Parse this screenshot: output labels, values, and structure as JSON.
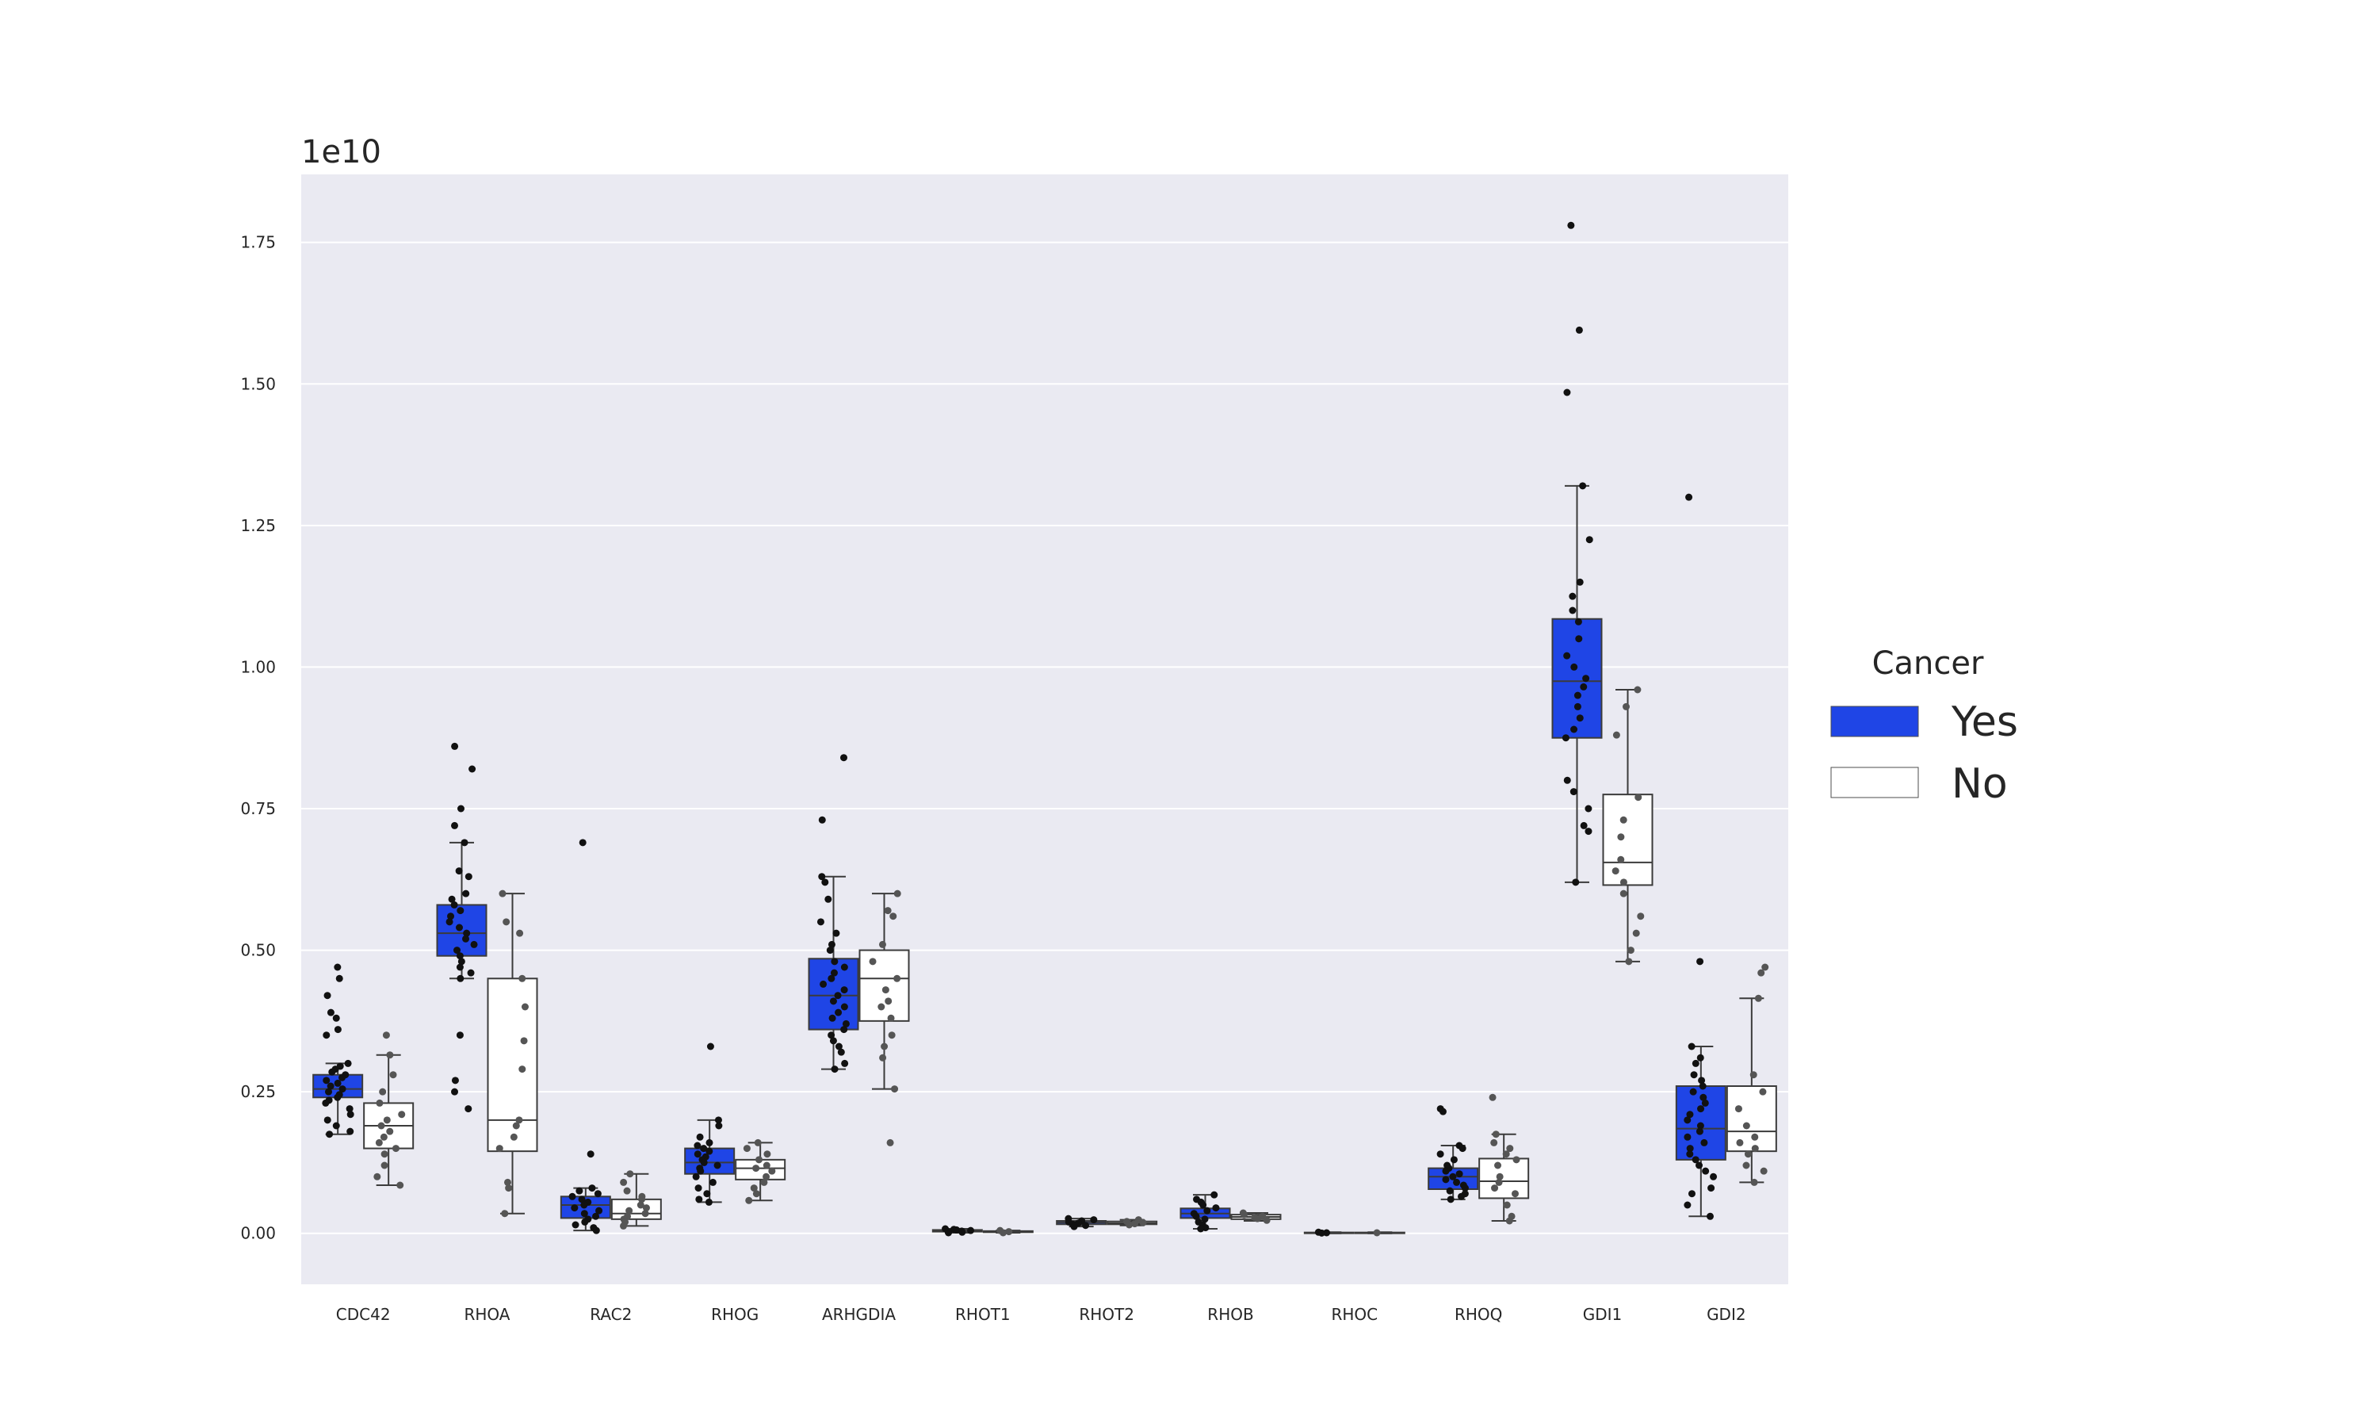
{
  "chart_data": {
    "type": "box",
    "title": "",
    "xlabel": "",
    "ylabel": "",
    "y_offset_label": "1e10",
    "y_scale_factor": 10000000000,
    "ylim": [
      -0.09,
      1.87
    ],
    "yticks": [
      0.0,
      0.25,
      0.5,
      0.75,
      1.0,
      1.25,
      1.5,
      1.75
    ],
    "ytick_labels": [
      "0.00",
      "0.25",
      "0.50",
      "0.75",
      "1.00",
      "1.25",
      "1.50",
      "1.75"
    ],
    "grid": true,
    "legend": {
      "title": "Cancer",
      "position": "right"
    },
    "categories": [
      "CDC42",
      "RHOA",
      "RAC2",
      "RHOG",
      "ARHGDIA",
      "RHOT1",
      "RHOT2",
      "RHOB",
      "RHOC",
      "RHOQ",
      "GDI1",
      "GDI2"
    ],
    "series": [
      {
        "name": "Yes",
        "color": "#1f45e6",
        "point_color": "#111111",
        "boxes": [
          {
            "q1": 0.24,
            "median": 0.255,
            "q3": 0.28,
            "whisker_low": 0.175,
            "whisker_high": 0.3,
            "points": [
              0.47,
              0.45,
              0.42,
              0.39,
              0.38,
              0.36,
              0.35,
              0.3,
              0.295,
              0.29,
              0.285,
              0.28,
              0.275,
              0.27,
              0.265,
              0.26,
              0.255,
              0.25,
              0.245,
              0.24,
              0.235,
              0.23,
              0.22,
              0.21,
              0.2,
              0.19,
              0.18,
              0.175
            ]
          },
          {
            "q1": 0.49,
            "median": 0.53,
            "q3": 0.58,
            "whisker_low": 0.45,
            "whisker_high": 0.69,
            "points": [
              0.86,
              0.82,
              0.75,
              0.72,
              0.69,
              0.64,
              0.63,
              0.6,
              0.59,
              0.58,
              0.57,
              0.56,
              0.55,
              0.54,
              0.53,
              0.52,
              0.51,
              0.5,
              0.49,
              0.48,
              0.47,
              0.46,
              0.45,
              0.35,
              0.27,
              0.25,
              0.22
            ]
          },
          {
            "q1": 0.027,
            "median": 0.05,
            "q3": 0.065,
            "whisker_low": 0.005,
            "whisker_high": 0.08,
            "points": [
              0.69,
              0.14,
              0.08,
              0.075,
              0.07,
              0.065,
              0.06,
              0.055,
              0.05,
              0.045,
              0.04,
              0.035,
              0.03,
              0.025,
              0.02,
              0.015,
              0.01,
              0.005
            ]
          },
          {
            "q1": 0.105,
            "median": 0.125,
            "q3": 0.15,
            "whisker_low": 0.055,
            "whisker_high": 0.2,
            "points": [
              0.33,
              0.2,
              0.19,
              0.17,
              0.16,
              0.155,
              0.15,
              0.145,
              0.14,
              0.135,
              0.13,
              0.125,
              0.12,
              0.115,
              0.11,
              0.1,
              0.09,
              0.08,
              0.07,
              0.06,
              0.055
            ]
          },
          {
            "q1": 0.36,
            "median": 0.42,
            "q3": 0.485,
            "whisker_low": 0.29,
            "whisker_high": 0.63,
            "points": [
              0.84,
              0.73,
              0.63,
              0.62,
              0.59,
              0.55,
              0.53,
              0.51,
              0.5,
              0.48,
              0.47,
              0.46,
              0.45,
              0.44,
              0.43,
              0.42,
              0.41,
              0.4,
              0.39,
              0.38,
              0.37,
              0.36,
              0.35,
              0.34,
              0.33,
              0.32,
              0.3,
              0.29
            ]
          },
          {
            "q1": 0.003,
            "median": 0.004,
            "q3": 0.006,
            "whisker_low": 0.001,
            "whisker_high": 0.008,
            "points": [
              0.008,
              0.007,
              0.006,
              0.005,
              0.004,
              0.003,
              0.002,
              0.001
            ]
          },
          {
            "q1": 0.016,
            "median": 0.019,
            "q3": 0.022,
            "whisker_low": 0.012,
            "whisker_high": 0.026,
            "points": [
              0.026,
              0.024,
              0.022,
              0.02,
              0.018,
              0.016,
              0.014,
              0.012
            ]
          },
          {
            "q1": 0.027,
            "median": 0.035,
            "q3": 0.044,
            "whisker_low": 0.008,
            "whisker_high": 0.068,
            "points": [
              0.068,
              0.06,
              0.055,
              0.05,
              0.045,
              0.04,
              0.035,
              0.03,
              0.025,
              0.02,
              0.015,
              0.01,
              0.008
            ]
          },
          {
            "q1": 0.0005,
            "median": 0.001,
            "q3": 0.0015,
            "whisker_low": 0.0,
            "whisker_high": 0.002,
            "points": [
              0.002,
              0.001,
              0.0005
            ]
          },
          {
            "q1": 0.078,
            "median": 0.1,
            "q3": 0.115,
            "whisker_low": 0.06,
            "whisker_high": 0.155,
            "points": [
              0.22,
              0.215,
              0.155,
              0.15,
              0.14,
              0.13,
              0.12,
              0.115,
              0.11,
              0.105,
              0.1,
              0.095,
              0.09,
              0.085,
              0.08,
              0.075,
              0.07,
              0.065,
              0.06
            ]
          },
          {
            "q1": 0.875,
            "median": 0.975,
            "q3": 1.085,
            "whisker_low": 0.62,
            "whisker_high": 1.32,
            "points": [
              1.78,
              1.595,
              1.485,
              1.32,
              1.225,
              1.15,
              1.125,
              1.1,
              1.08,
              1.05,
              1.02,
              1.0,
              0.98,
              0.965,
              0.95,
              0.93,
              0.91,
              0.89,
              0.875,
              0.8,
              0.78,
              0.75,
              0.72,
              0.71,
              0.62
            ]
          },
          {
            "q1": 0.13,
            "median": 0.185,
            "q3": 0.26,
            "whisker_low": 0.03,
            "whisker_high": 0.33,
            "points": [
              1.3,
              0.48,
              0.33,
              0.31,
              0.3,
              0.28,
              0.27,
              0.26,
              0.25,
              0.24,
              0.23,
              0.22,
              0.21,
              0.2,
              0.19,
              0.18,
              0.17,
              0.16,
              0.15,
              0.14,
              0.13,
              0.12,
              0.11,
              0.1,
              0.08,
              0.07,
              0.05,
              0.03
            ]
          }
        ]
      },
      {
        "name": "No",
        "color": "#ffffff",
        "point_color": "#555555",
        "boxes": [
          {
            "q1": 0.15,
            "median": 0.19,
            "q3": 0.23,
            "whisker_low": 0.085,
            "whisker_high": 0.315,
            "points": [
              0.35,
              0.315,
              0.28,
              0.25,
              0.23,
              0.21,
              0.2,
              0.19,
              0.18,
              0.17,
              0.16,
              0.15,
              0.14,
              0.12,
              0.1,
              0.085
            ]
          },
          {
            "q1": 0.145,
            "median": 0.2,
            "q3": 0.45,
            "whisker_low": 0.035,
            "whisker_high": 0.6,
            "points": [
              0.6,
              0.55,
              0.53,
              0.45,
              0.4,
              0.34,
              0.29,
              0.2,
              0.19,
              0.17,
              0.15,
              0.09,
              0.08,
              0.035
            ]
          },
          {
            "q1": 0.025,
            "median": 0.035,
            "q3": 0.06,
            "whisker_low": 0.013,
            "whisker_high": 0.105,
            "points": [
              0.105,
              0.09,
              0.075,
              0.065,
              0.06,
              0.05,
              0.045,
              0.04,
              0.035,
              0.03,
              0.025,
              0.02,
              0.013
            ]
          },
          {
            "q1": 0.095,
            "median": 0.115,
            "q3": 0.13,
            "whisker_low": 0.058,
            "whisker_high": 0.16,
            "points": [
              0.16,
              0.15,
              0.14,
              0.13,
              0.12,
              0.115,
              0.11,
              0.1,
              0.09,
              0.08,
              0.07,
              0.058
            ]
          },
          {
            "q1": 0.375,
            "median": 0.45,
            "q3": 0.5,
            "whisker_low": 0.255,
            "whisker_high": 0.6,
            "points": [
              0.6,
              0.57,
              0.56,
              0.51,
              0.48,
              0.45,
              0.43,
              0.41,
              0.4,
              0.38,
              0.35,
              0.33,
              0.31,
              0.255,
              0.16
            ]
          },
          {
            "q1": 0.002,
            "median": 0.003,
            "q3": 0.004,
            "whisker_low": 0.001,
            "whisker_high": 0.005,
            "points": [
              0.005,
              0.003,
              0.001
            ]
          },
          {
            "q1": 0.016,
            "median": 0.018,
            "q3": 0.021,
            "whisker_low": 0.014,
            "whisker_high": 0.024,
            "points": [
              0.024,
              0.021,
              0.019,
              0.017,
              0.015
            ]
          },
          {
            "q1": 0.025,
            "median": 0.029,
            "q3": 0.033,
            "whisker_low": 0.022,
            "whisker_high": 0.036,
            "points": [
              0.036,
              0.033,
              0.03,
              0.028,
              0.026,
              0.023
            ]
          },
          {
            "q1": 0.0005,
            "median": 0.001,
            "q3": 0.0015,
            "whisker_low": 0.0,
            "whisker_high": 0.002,
            "points": [
              0.001
            ]
          },
          {
            "q1": 0.062,
            "median": 0.092,
            "q3": 0.132,
            "whisker_low": 0.022,
            "whisker_high": 0.175,
            "points": [
              0.24,
              0.175,
              0.16,
              0.15,
              0.14,
              0.13,
              0.12,
              0.1,
              0.09,
              0.08,
              0.07,
              0.05,
              0.03,
              0.022
            ]
          },
          {
            "q1": 0.615,
            "median": 0.655,
            "q3": 0.775,
            "whisker_low": 0.48,
            "whisker_high": 0.96,
            "points": [
              0.96,
              0.93,
              0.88,
              0.77,
              0.73,
              0.7,
              0.66,
              0.64,
              0.62,
              0.6,
              0.56,
              0.53,
              0.5,
              0.48
            ]
          },
          {
            "q1": 0.145,
            "median": 0.18,
            "q3": 0.26,
            "whisker_low": 0.09,
            "whisker_high": 0.415,
            "points": [
              0.47,
              0.46,
              0.415,
              0.28,
              0.25,
              0.22,
              0.19,
              0.17,
              0.16,
              0.15,
              0.14,
              0.12,
              0.11,
              0.09
            ]
          }
        ]
      }
    ]
  }
}
